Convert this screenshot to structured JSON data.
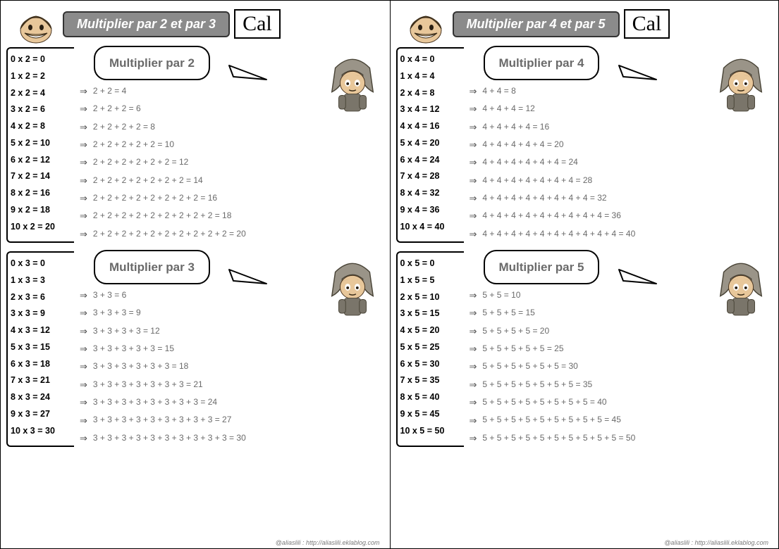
{
  "colors": {
    "pill_bg": "#8b8b8b",
    "pill_text": "#ffffff",
    "border": "#000000",
    "body_text": "#000000",
    "expansion_text": "#6a6a6a",
    "credit_text": "#7a7a7a",
    "page_bg": "#ffffff"
  },
  "typography": {
    "title_fontsize": 18,
    "cal_fontsize": 30,
    "bubble_fontsize": 17,
    "table_fontsize": 12.5,
    "expansion_fontsize": 12,
    "credit_fontsize": 9
  },
  "credit": "@aliaslili : http://aliaslili.eklablog.com",
  "cal_label": "Cal",
  "pages": [
    {
      "title": "Multiplier par 2 et par 3",
      "sections": [
        {
          "bubble": "Multiplier par 2",
          "table": [
            "0 x 2 = 0",
            "1 x 2 = 2",
            "2 x 2 = 4",
            "3 x 2 = 6",
            "4 x 2 = 8",
            "5 x 2 = 10",
            "6 x 2 = 12",
            "7 x 2 = 14",
            "8 x 2 = 16",
            "9 x 2 = 18",
            "10 x 2 = 20"
          ],
          "expansions": [
            "2 + 2 = 4",
            "2 + 2 + 2 = 6",
            "2 + 2 + 2 + 2 = 8",
            "2 + 2 + 2 + 2 + 2 = 10",
            "2 + 2 + 2 + 2 + 2 + 2 = 12",
            "2 + 2 + 2 + 2 + 2 + 2 + 2 = 14",
            "2 + 2 + 2 + 2 + 2 + 2  + 2 + 2 = 16",
            "2 + 2 + 2 + 2 + 2 + 2  + 2 + 2 + 2 = 18",
            "2 + 2 + 2 + 2 + 2 + 2  + 2 + 2 + 2 + 2 = 20"
          ]
        },
        {
          "bubble": "Multiplier par 3",
          "table": [
            "0 x 3 = 0",
            "1 x 3 = 3",
            "2 x 3 = 6",
            "3 x 3 = 9",
            "4 x 3 = 12",
            "5 x 3 = 15",
            "6 x 3 = 18",
            "7 x 3 = 21",
            "8 x 3 = 24",
            "9 x 3 = 27",
            "10 x 3 = 30"
          ],
          "expansions": [
            "3 + 3 = 6",
            "3 + 3 + 3 = 9",
            "3 + 3 + 3 + 3 = 12",
            "3 + 3 + 3 + 3 + 3 = 15",
            "3 + 3 + 3 + 3 + 3 + 3 = 18",
            "3 + 3 + 3 + 3 + 3 + 3 + 3 = 21",
            "3 + 3 + 3 + 3 + 3 + 3  + 3 + 3 = 24",
            "3 + 3 + 3 + 3 + 3 + 3  + 3 + 3 + 3 = 27",
            "3 + 3 + 3 + 3 + 3 + 3  + 3 + 3 + 3 + 3 = 30"
          ]
        }
      ]
    },
    {
      "title": "Multiplier par 4 et par 5",
      "sections": [
        {
          "bubble": "Multiplier par 4",
          "table": [
            "0 x 4 = 0",
            "1 x 4 = 4",
            "2 x 4 = 8",
            "3 x 4 = 12",
            "4 x 4 = 16",
            "5 x 4 = 20",
            "6 x 4 = 24",
            "7 x 4 = 28",
            "8 x 4 = 32",
            "9 x 4 = 36",
            "10 x 4 = 40"
          ],
          "expansions": [
            "4 + 4 = 8",
            "4 + 4 + 4 = 12",
            "4 + 4 + 4 + 4 = 16",
            "4 + 4 + 4 + 4 + 4 = 20",
            "4 + 4 + 4 + 4 + 4 + 4 = 24",
            "4 + 4 + 4 + 4 + 4 + 4 + 4 = 28",
            "4 + 4 + 4 + 4 + 4 + 4  + 4 + 4 = 32",
            "4 + 4 + 4 + 4 + 4 + 4  + 4 + 4 + 4 = 36",
            "4 + 4 + 4 + 4 + 4 + 4  + 4 + 4 + 4 + 4 = 40"
          ]
        },
        {
          "bubble": "Multiplier par 5",
          "table": [
            "0 x 5 = 0",
            "1 x 5 = 5",
            "2 x 5 = 10",
            "3 x 5 = 15",
            "4 x 5 = 20",
            "5 x 5 = 25",
            "6 x 5 = 30",
            "7 x 5 = 35",
            "8 x 5 = 40",
            "9 x 5 = 45",
            "10 x 5 = 50"
          ],
          "expansions": [
            "5 + 5 = 10",
            "5 + 5 + 5 = 15",
            "5 + 5 + 5 + 5 = 20",
            "5 + 5 + 5 + 5 + 5 = 25",
            "5 + 5 + 5 + 5 + 5 + 5 = 30",
            "5 + 5 + 5 + 5 + 5 + 5 + 5 = 35",
            "5 + 5 + 5 + 5 + 5 + 5  + 5 + 5 = 40",
            "5 + 5 + 5 + 5 + 5 + 5  + 5 + 5 + 5 = 45",
            "5 + 5 + 5 + 5 + 5 + 5  + 5 + 5 + 5 + 5 = 50"
          ]
        }
      ]
    }
  ]
}
